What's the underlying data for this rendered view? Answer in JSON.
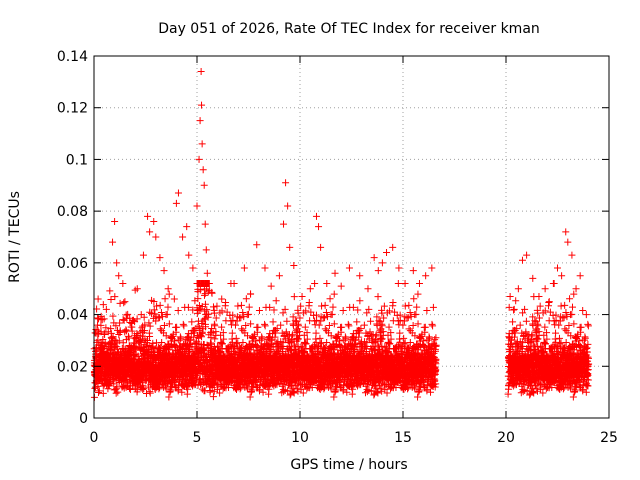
{
  "chart_data": {
    "type": "scatter",
    "title": "Day 051 of 2026, Rate Of TEC Index for receiver kman",
    "xlabel": "GPS time / hours",
    "ylabel": "ROTI / TECUs",
    "xlim": [
      0,
      25
    ],
    "ylim": [
      0,
      0.14
    ],
    "xticks": [
      0,
      5,
      10,
      15,
      20,
      25
    ],
    "yticks": [
      0,
      0.02,
      0.04,
      0.06,
      0.08,
      0.1,
      0.12,
      0.14
    ],
    "xtick_labels": [
      "0",
      "5",
      "10",
      "15",
      "20",
      "25"
    ],
    "ytick_labels": [
      "0",
      "0.02",
      "0.04",
      "0.06",
      "0.08",
      "0.1",
      "0.12",
      "0.14"
    ],
    "grid": true,
    "marker": "+",
    "color": "#ff0000",
    "data_coverage_hours": [
      [
        0,
        16.6
      ],
      [
        20.1,
        24.0
      ]
    ],
    "series": [
      {
        "name": "ROTI",
        "points": [
          [
            0.2,
            0.046
          ],
          [
            0.4,
            0.038
          ],
          [
            0.6,
            0.042
          ],
          [
            0.9,
            0.068
          ],
          [
            1.0,
            0.076
          ],
          [
            1.1,
            0.06
          ],
          [
            1.2,
            0.055
          ],
          [
            1.4,
            0.052
          ],
          [
            1.5,
            0.045
          ],
          [
            2.1,
            0.05
          ],
          [
            2.4,
            0.063
          ],
          [
            2.6,
            0.078
          ],
          [
            2.7,
            0.072
          ],
          [
            2.9,
            0.076
          ],
          [
            3.0,
            0.07
          ],
          [
            3.2,
            0.062
          ],
          [
            3.4,
            0.057
          ],
          [
            3.6,
            0.05
          ],
          [
            3.9,
            0.046
          ],
          [
            4.0,
            0.083
          ],
          [
            4.1,
            0.087
          ],
          [
            4.3,
            0.07
          ],
          [
            4.5,
            0.074
          ],
          [
            4.6,
            0.063
          ],
          [
            4.8,
            0.058
          ],
          [
            5.0,
            0.082
          ],
          [
            5.1,
            0.1
          ],
          [
            5.15,
            0.115
          ],
          [
            5.2,
            0.134
          ],
          [
            5.22,
            0.121
          ],
          [
            5.25,
            0.106
          ],
          [
            5.3,
            0.096
          ],
          [
            5.35,
            0.09
          ],
          [
            5.4,
            0.075
          ],
          [
            5.45,
            0.065
          ],
          [
            5.5,
            0.056
          ],
          [
            5.8,
            0.043
          ],
          [
            6.2,
            0.046
          ],
          [
            6.8,
            0.052
          ],
          [
            7.3,
            0.058
          ],
          [
            7.6,
            0.048
          ],
          [
            7.9,
            0.067
          ],
          [
            8.3,
            0.058
          ],
          [
            8.6,
            0.051
          ],
          [
            9.0,
            0.055
          ],
          [
            9.2,
            0.075
          ],
          [
            9.3,
            0.091
          ],
          [
            9.4,
            0.082
          ],
          [
            9.5,
            0.066
          ],
          [
            9.7,
            0.059
          ],
          [
            10.1,
            0.047
          ],
          [
            10.5,
            0.05
          ],
          [
            10.8,
            0.078
          ],
          [
            10.9,
            0.074
          ],
          [
            11.0,
            0.066
          ],
          [
            11.3,
            0.052
          ],
          [
            11.7,
            0.056
          ],
          [
            12.0,
            0.051
          ],
          [
            12.4,
            0.058
          ],
          [
            12.9,
            0.055
          ],
          [
            13.3,
            0.05
          ],
          [
            13.6,
            0.062
          ],
          [
            13.8,
            0.057
          ],
          [
            14.0,
            0.06
          ],
          [
            14.2,
            0.064
          ],
          [
            14.5,
            0.066
          ],
          [
            14.8,
            0.058
          ],
          [
            15.1,
            0.052
          ],
          [
            15.5,
            0.057
          ],
          [
            15.8,
            0.052
          ],
          [
            16.1,
            0.055
          ],
          [
            16.4,
            0.058
          ],
          [
            20.2,
            0.047
          ],
          [
            20.4,
            0.042
          ],
          [
            20.6,
            0.05
          ],
          [
            20.8,
            0.061
          ],
          [
            21.0,
            0.063
          ],
          [
            21.3,
            0.054
          ],
          [
            21.6,
            0.047
          ],
          [
            21.9,
            0.05
          ],
          [
            22.1,
            0.045
          ],
          [
            22.3,
            0.052
          ],
          [
            22.5,
            0.058
          ],
          [
            22.7,
            0.055
          ],
          [
            22.9,
            0.072
          ],
          [
            23.0,
            0.068
          ],
          [
            23.2,
            0.063
          ],
          [
            23.4,
            0.05
          ],
          [
            23.6,
            0.055
          ],
          [
            23.9,
            0.04
          ]
        ]
      }
    ]
  }
}
